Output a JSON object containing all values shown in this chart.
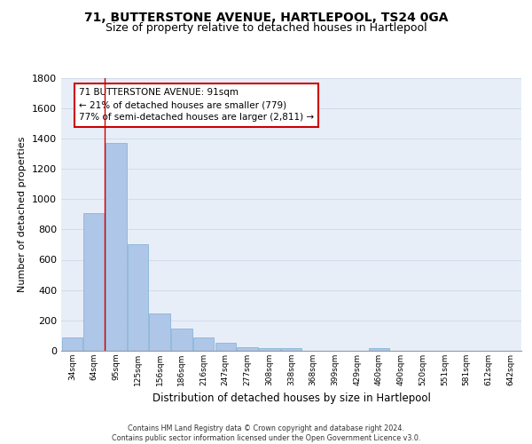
{
  "title": "71, BUTTERSTONE AVENUE, HARTLEPOOL, TS24 0GA",
  "subtitle": "Size of property relative to detached houses in Hartlepool",
  "xlabel": "Distribution of detached houses by size in Hartlepool",
  "ylabel": "Number of detached properties",
  "categories": [
    "34sqm",
    "64sqm",
    "95sqm",
    "125sqm",
    "156sqm",
    "186sqm",
    "216sqm",
    "247sqm",
    "277sqm",
    "308sqm",
    "338sqm",
    "368sqm",
    "399sqm",
    "429sqm",
    "460sqm",
    "490sqm",
    "520sqm",
    "551sqm",
    "581sqm",
    "612sqm",
    "642sqm"
  ],
  "values": [
    90,
    910,
    1370,
    700,
    245,
    145,
    90,
    55,
    25,
    20,
    20,
    0,
    0,
    0,
    15,
    0,
    0,
    0,
    0,
    0,
    0
  ],
  "bar_color": "#aec6e8",
  "bar_edge_color": "#7aafd4",
  "vline_color": "#cc0000",
  "annotation_text": "71 BUTTERSTONE AVENUE: 91sqm\n← 21% of detached houses are smaller (779)\n77% of semi-detached houses are larger (2,811) →",
  "annotation_box_color": "#ffffff",
  "annotation_box_edge": "#cc0000",
  "ylim": [
    0,
    1800
  ],
  "yticks": [
    0,
    200,
    400,
    600,
    800,
    1000,
    1200,
    1400,
    1600,
    1800
  ],
  "grid_color": "#d0dcea",
  "background_color": "#e8eef8",
  "footer_line1": "Contains HM Land Registry data © Crown copyright and database right 2024.",
  "footer_line2": "Contains public sector information licensed under the Open Government Licence v3.0.",
  "title_fontsize": 10,
  "subtitle_fontsize": 9
}
